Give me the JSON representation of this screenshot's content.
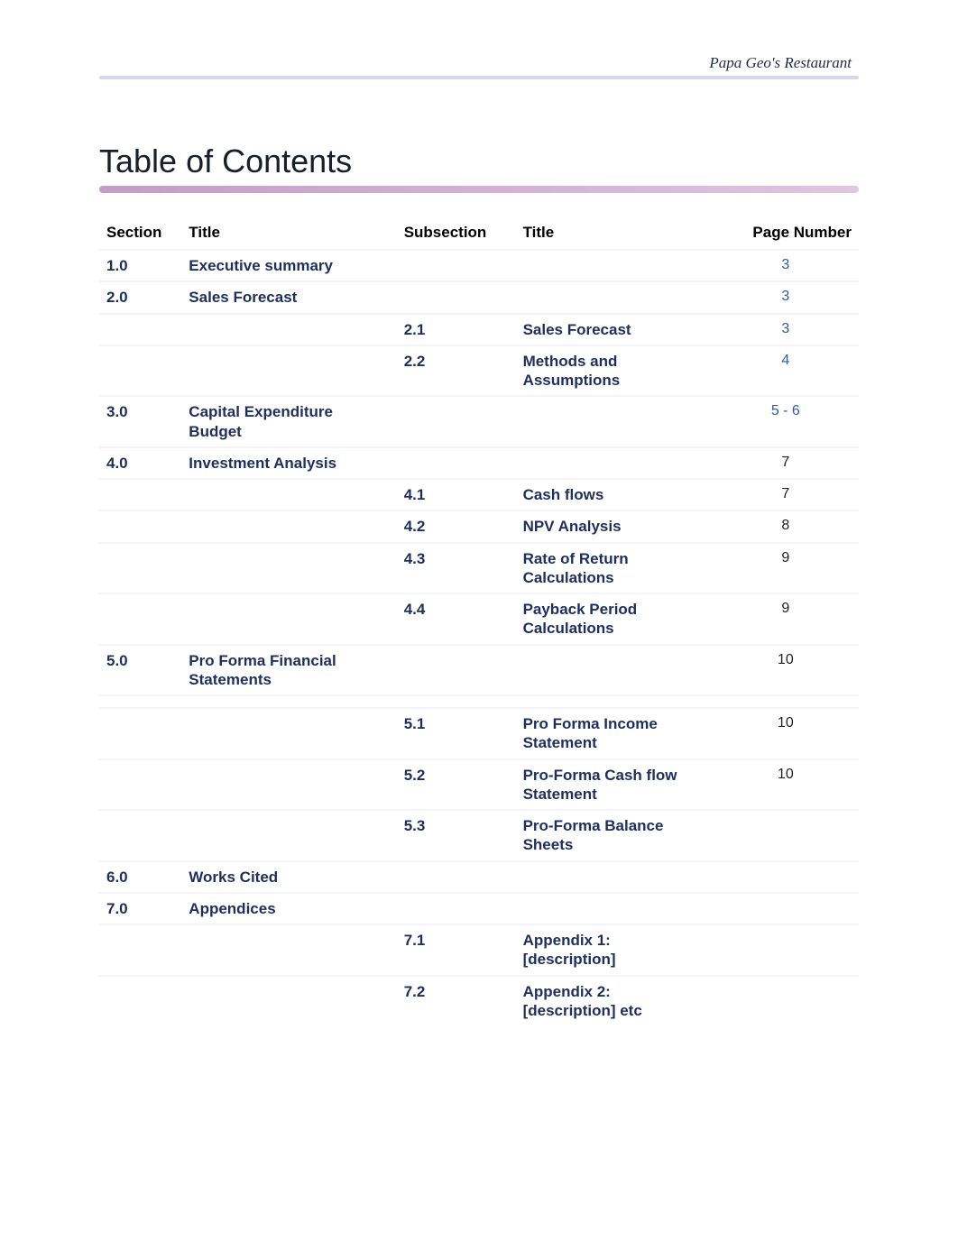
{
  "colors": {
    "header_line": "#d5d6ef",
    "header_text": "#1f2a4a",
    "toc_title": "#17202a",
    "underline_gradient_from": "#c59bc7",
    "underline_gradient_to": "#dfc6e1",
    "section_text": "#1d2f5f",
    "page_link": "#2a5db0",
    "page_plain": "#222222",
    "row_border": "#f3f4f7"
  },
  "header": {
    "text": "Papa Geo's Restaurant"
  },
  "heading": "Table of Contents",
  "columns": {
    "section": "Section",
    "title1": "Title",
    "subsection": "Subsection",
    "title2": "Title",
    "page": "Page Number"
  },
  "rows": [
    {
      "section": "1.0",
      "title": "Executive summary",
      "sub": "",
      "subTitle": "",
      "page": "3",
      "link": true
    },
    {
      "section": "2.0",
      "title": "Sales Forecast",
      "sub": "",
      "subTitle": "",
      "page": "3",
      "link": true
    },
    {
      "section": "",
      "title": "",
      "sub": "2.1",
      "subTitle": "Sales Forecast",
      "page": "3",
      "link": true
    },
    {
      "section": "",
      "title": "",
      "sub": "2.2",
      "subTitle": "Methods and Assumptions",
      "page": "4",
      "link": true
    },
    {
      "section": "3.0",
      "title": "Capital Expenditure Budget",
      "sub": "",
      "subTitle": "",
      "page": "5 - 6",
      "link": true
    },
    {
      "section": "4.0",
      "title": "Investment Analysis",
      "sub": "",
      "subTitle": "",
      "page": "7",
      "link": false
    },
    {
      "section": "",
      "title": "",
      "sub": "4.1",
      "subTitle": "Cash flows",
      "page": "7",
      "link": false
    },
    {
      "section": "",
      "title": "",
      "sub": "4.2",
      "subTitle": "NPV Analysis",
      "page": "8",
      "link": false
    },
    {
      "section": "",
      "title": "",
      "sub": "4.3",
      "subTitle": "Rate of Return Calculations",
      "page": "9",
      "link": false
    },
    {
      "section": "",
      "title": "",
      "sub": "4.4",
      "subTitle": "Payback Period Calculations",
      "page": "9",
      "link": false
    },
    {
      "section": "5.0",
      "title": "Pro Forma Financial Statements",
      "sub": "",
      "subTitle": "",
      "page": "10",
      "link": false
    },
    {
      "blank": true
    },
    {
      "section": "",
      "title": "",
      "sub": "5.1",
      "subTitle": "Pro Forma Income Statement",
      "page": "10",
      "link": false
    },
    {
      "section": "",
      "title": "",
      "sub": "5.2",
      "subTitle": "Pro-Forma Cash flow Statement",
      "page": "10",
      "link": false
    },
    {
      "section": "",
      "title": "",
      "sub": "5.3",
      "subTitle": "Pro-Forma Balance Sheets",
      "page": "",
      "link": false
    },
    {
      "section": "6.0",
      "title": "Works Cited",
      "sub": "",
      "subTitle": "",
      "page": "",
      "link": false
    },
    {
      "section": "7.0",
      "title": "Appendices",
      "sub": "",
      "subTitle": "",
      "page": "",
      "link": false
    },
    {
      "section": "",
      "title": "",
      "sub": "7.1",
      "subTitle": "Appendix 1: [description]",
      "page": "",
      "link": false
    },
    {
      "section": "",
      "title": "",
      "sub": "7.2",
      "subTitle": "Appendix 2: [description] etc",
      "page": "",
      "link": false
    }
  ]
}
